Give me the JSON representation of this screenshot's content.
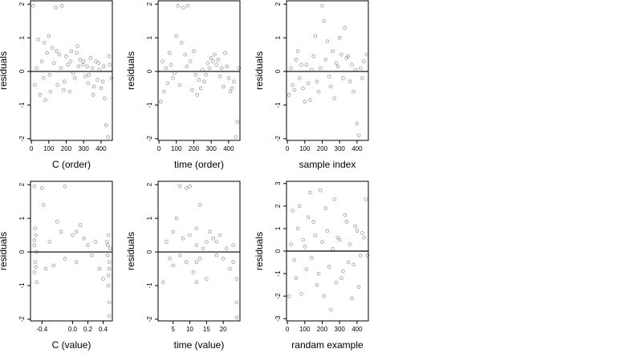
{
  "chart_data": [
    {
      "type": "scatter",
      "xlabel": "C (order)",
      "ylabel": "residuals",
      "xlim": [
        -5,
        465
      ],
      "ylim": [
        -2.05,
        2.1
      ],
      "xticks": [
        0,
        100,
        200,
        300,
        400
      ],
      "yticks": [
        -2,
        -1,
        0,
        1,
        2
      ],
      "hline": 0,
      "points": [
        [
          10,
          1.95
        ],
        [
          40,
          0.95
        ],
        [
          75,
          0.85
        ],
        [
          100,
          1.05
        ],
        [
          120,
          0.7
        ],
        [
          140,
          1.9
        ],
        [
          160,
          0.5
        ],
        [
          175,
          1.95
        ],
        [
          200,
          0.45
        ],
        [
          230,
          0.6
        ],
        [
          260,
          0.55
        ],
        [
          280,
          0.35
        ],
        [
          300,
          0.3
        ],
        [
          320,
          0.15
        ],
        [
          350,
          0.1
        ],
        [
          380,
          -0.25
        ],
        [
          400,
          -0.5
        ],
        [
          420,
          -0.8
        ],
        [
          440,
          -1.95
        ],
        [
          460,
          -0.2
        ],
        [
          20,
          -0.4
        ],
        [
          50,
          -0.7
        ],
        [
          80,
          -0.85
        ],
        [
          110,
          -0.6
        ],
        [
          150,
          -0.4
        ],
        [
          190,
          -0.3
        ],
        [
          220,
          -0.6
        ],
        [
          250,
          -0.2
        ],
        [
          330,
          -0.1
        ],
        [
          360,
          -0.45
        ],
        [
          410,
          -0.3
        ],
        [
          430,
          -1.6
        ],
        [
          450,
          0.2
        ],
        [
          60,
          0.3
        ],
        [
          90,
          0.55
        ],
        [
          130,
          0.25
        ],
        [
          170,
          0.1
        ],
        [
          210,
          0.2
        ],
        [
          240,
          -0.05
        ],
        [
          270,
          0.15
        ],
        [
          310,
          -0.15
        ],
        [
          340,
          0.4
        ],
        [
          370,
          0.3
        ],
        [
          390,
          0.05
        ],
        [
          30,
          0.1
        ],
        [
          70,
          -0.2
        ],
        [
          105,
          -0.1
        ],
        [
          145,
          0.6
        ],
        [
          185,
          -0.55
        ],
        [
          225,
          0.3
        ],
        [
          265,
          0.75
        ],
        [
          295,
          0.2
        ],
        [
          325,
          -0.35
        ],
        [
          355,
          -0.7
        ],
        [
          385,
          0.25
        ],
        [
          415,
          0.15
        ],
        [
          445,
          0.45
        ]
      ]
    },
    {
      "type": "scatter",
      "xlabel": "time (order)",
      "ylabel": "residuals",
      "xlim": [
        -5,
        465
      ],
      "ylim": [
        -2.05,
        2.1
      ],
      "xticks": [
        0,
        100,
        200,
        300,
        400
      ],
      "yticks": [
        -2,
        -1,
        0,
        1,
        2
      ],
      "hline": 0,
      "points": [
        [
          110,
          1.95
        ],
        [
          140,
          1.9
        ],
        [
          165,
          1.95
        ],
        [
          100,
          1.05
        ],
        [
          130,
          0.85
        ],
        [
          60,
          0.55
        ],
        [
          20,
          0.3
        ],
        [
          40,
          0.1
        ],
        [
          80,
          -0.2
        ],
        [
          150,
          0.5
        ],
        [
          180,
          0.3
        ],
        [
          210,
          -0.1
        ],
        [
          240,
          -0.5
        ],
        [
          260,
          -0.3
        ],
        [
          300,
          0.4
        ],
        [
          320,
          0.5
        ],
        [
          340,
          0.35
        ],
        [
          360,
          0.1
        ],
        [
          380,
          0.55
        ],
        [
          400,
          -0.2
        ],
        [
          420,
          -0.5
        ],
        [
          440,
          -1.95
        ],
        [
          450,
          -1.5
        ],
        [
          10,
          -0.9
        ],
        [
          30,
          -0.6
        ],
        [
          50,
          -0.35
        ],
        [
          70,
          0.2
        ],
        [
          90,
          -0.05
        ],
        [
          120,
          -0.4
        ],
        [
          160,
          0.15
        ],
        [
          190,
          -0.55
        ],
        [
          220,
          -0.7
        ],
        [
          250,
          0.05
        ],
        [
          280,
          0.25
        ],
        [
          310,
          0.3
        ],
        [
          330,
          0.2
        ],
        [
          350,
          -0.15
        ],
        [
          370,
          -0.45
        ],
        [
          390,
          0.15
        ],
        [
          410,
          -0.6
        ],
        [
          430,
          -0.3
        ],
        [
          460,
          0.1
        ],
        [
          200,
          0.6
        ],
        [
          230,
          -0.25
        ],
        [
          270,
          -0.1
        ],
        [
          290,
          0.1
        ]
      ]
    },
    {
      "type": "scatter",
      "xlabel": "sample index",
      "ylabel": "residuals",
      "xlim": [
        -5,
        465
      ],
      "ylim": [
        -2.05,
        2.1
      ],
      "xticks": [
        0,
        100,
        200,
        300,
        400
      ],
      "yticks": [
        -2,
        -1,
        0,
        1,
        2
      ],
      "hline": 0,
      "points": [
        [
          200,
          1.95
        ],
        [
          210,
          1.5
        ],
        [
          160,
          1.05
        ],
        [
          230,
          0.9
        ],
        [
          300,
          1.0
        ],
        [
          330,
          1.3
        ],
        [
          400,
          -1.55
        ],
        [
          410,
          -1.9
        ],
        [
          10,
          -0.7
        ],
        [
          30,
          -0.4
        ],
        [
          50,
          0.35
        ],
        [
          70,
          -0.2
        ],
        [
          90,
          -0.5
        ],
        [
          110,
          0.2
        ],
        [
          130,
          -0.85
        ],
        [
          150,
          0.45
        ],
        [
          170,
          -0.3
        ],
        [
          190,
          0.1
        ],
        [
          220,
          0.35
        ],
        [
          240,
          -0.15
        ],
        [
          260,
          0.6
        ],
        [
          280,
          0.25
        ],
        [
          310,
          0.5
        ],
        [
          340,
          0.4
        ],
        [
          360,
          -0.3
        ],
        [
          380,
          -0.6
        ],
        [
          420,
          0.1
        ],
        [
          440,
          0.3
        ],
        [
          455,
          0.5
        ],
        [
          20,
          0.1
        ],
        [
          40,
          -0.55
        ],
        [
          60,
          0.6
        ],
        [
          80,
          0.2
        ],
        [
          100,
          -0.9
        ],
        [
          120,
          -0.35
        ],
        [
          140,
          0.05
        ],
        [
          180,
          -0.6
        ],
        [
          250,
          -0.45
        ],
        [
          270,
          -0.8
        ],
        [
          290,
          0.15
        ],
        [
          320,
          -0.2
        ],
        [
          350,
          0.45
        ],
        [
          370,
          0.2
        ],
        [
          390,
          0.05
        ],
        [
          430,
          -0.2
        ]
      ]
    },
    {
      "type": "scatter",
      "xlabel": "C (value)",
      "ylabel": "residuals",
      "xlim": [
        -0.55,
        0.52
      ],
      "ylim": [
        -2.05,
        2.1
      ],
      "xticks": [
        -0.4,
        0.0,
        0.2,
        0.4
      ],
      "xtick_labels": [
        "-0.4",
        "0.0",
        "0.2",
        "0.4"
      ],
      "yticks": [
        -2,
        -1,
        0,
        1,
        2
      ],
      "hline": 0,
      "points": [
        [
          -0.5,
          1.95
        ],
        [
          -0.47,
          -0.9
        ],
        [
          -0.48,
          0.5
        ],
        [
          -0.5,
          0.2
        ],
        [
          -0.49,
          -0.3
        ],
        [
          -0.5,
          -0.6
        ],
        [
          -0.47,
          0.0
        ],
        [
          -0.48,
          -0.45
        ],
        [
          -0.5,
          0.35
        ],
        [
          -0.49,
          0.7
        ],
        [
          -0.4,
          1.9
        ],
        [
          -0.38,
          1.4
        ],
        [
          -0.35,
          -0.5
        ],
        [
          -0.3,
          0.3
        ],
        [
          -0.25,
          -0.4
        ],
        [
          -0.2,
          0.9
        ],
        [
          -0.15,
          0.6
        ],
        [
          -0.1,
          1.95
        ],
        [
          -0.1,
          -0.2
        ],
        [
          0.0,
          0.5
        ],
        [
          0.05,
          0.6
        ],
        [
          0.05,
          -0.3
        ],
        [
          0.1,
          0.8
        ],
        [
          0.15,
          0.4
        ],
        [
          0.2,
          0.2
        ],
        [
          0.25,
          -0.1
        ],
        [
          0.3,
          0.3
        ],
        [
          0.35,
          -0.5
        ],
        [
          0.4,
          -0.8
        ],
        [
          0.48,
          -1.9
        ],
        [
          0.48,
          -1.5
        ],
        [
          0.47,
          -0.7
        ],
        [
          0.46,
          0.2
        ],
        [
          0.48,
          -0.3
        ],
        [
          0.47,
          0.5
        ],
        [
          0.46,
          -0.1
        ],
        [
          0.49,
          0.1
        ],
        [
          0.48,
          -0.5
        ],
        [
          0.45,
          0.3
        ],
        [
          0.47,
          -1.0
        ]
      ]
    },
    {
      "type": "scatter",
      "xlabel": "time (value)",
      "ylabel": "residuals",
      "xlim": [
        0.5,
        25
      ],
      "ylim": [
        -2.05,
        2.1
      ],
      "xticks": [
        5,
        10,
        15,
        20
      ],
      "yticks": [
        -2,
        -1,
        0,
        1,
        2
      ],
      "hline": 0,
      "points": [
        [
          2,
          -0.9
        ],
        [
          3,
          0.3
        ],
        [
          4,
          -0.2
        ],
        [
          5,
          0.6
        ],
        [
          5,
          -0.4
        ],
        [
          6,
          1.0
        ],
        [
          7,
          1.95
        ],
        [
          7,
          -0.1
        ],
        [
          8,
          0.4
        ],
        [
          9,
          1.9
        ],
        [
          9,
          -0.3
        ],
        [
          10,
          0.5
        ],
        [
          10,
          1.95
        ],
        [
          11,
          -0.6
        ],
        [
          12,
          0.2
        ],
        [
          12,
          -0.9
        ],
        [
          12,
          0.7
        ],
        [
          12,
          -0.3
        ],
        [
          13,
          1.4
        ],
        [
          13,
          -0.2
        ],
        [
          14,
          0.1
        ],
        [
          15,
          -0.8
        ],
        [
          15,
          0.3
        ],
        [
          16,
          0.6
        ],
        [
          17,
          0.4
        ],
        [
          18,
          0.3
        ],
        [
          18,
          -0.1
        ],
        [
          19,
          0.5
        ],
        [
          20,
          -0.2
        ],
        [
          21,
          0.1
        ],
        [
          22,
          -0.5
        ],
        [
          23,
          -0.3
        ],
        [
          24,
          -1.5
        ],
        [
          24,
          -1.95
        ],
        [
          24,
          -0.8
        ],
        [
          23,
          0.2
        ]
      ]
    },
    {
      "type": "scatter",
      "xlabel": "randam example",
      "ylabel": "residuals",
      "xlim": [
        -5,
        465
      ],
      "ylim": [
        -3.1,
        3.1
      ],
      "xticks": [
        0,
        100,
        200,
        300,
        400
      ],
      "yticks": [
        -3,
        -2,
        -1,
        0,
        1,
        2,
        3
      ],
      "hline": 0,
      "points": [
        [
          10,
          -2.0
        ],
        [
          30,
          1.8
        ],
        [
          50,
          -1.2
        ],
        [
          70,
          2.0
        ],
        [
          90,
          0.5
        ],
        [
          110,
          -0.8
        ],
        [
          130,
          2.6
        ],
        [
          150,
          1.3
        ],
        [
          170,
          -1.5
        ],
        [
          190,
          2.7
        ],
        [
          210,
          -2.0
        ],
        [
          230,
          0.9
        ],
        [
          250,
          -2.6
        ],
        [
          270,
          2.3
        ],
        [
          290,
          0.6
        ],
        [
          310,
          -1.2
        ],
        [
          330,
          1.6
        ],
        [
          350,
          -0.5
        ],
        [
          370,
          -2.1
        ],
        [
          390,
          1.1
        ],
        [
          410,
          -1.6
        ],
        [
          430,
          0.8
        ],
        [
          450,
          2.3
        ],
        [
          460,
          -0.2
        ],
        [
          20,
          0.3
        ],
        [
          40,
          -0.4
        ],
        [
          60,
          1.0
        ],
        [
          80,
          -1.9
        ],
        [
          100,
          0.2
        ],
        [
          120,
          1.5
        ],
        [
          140,
          -0.3
        ],
        [
          160,
          0.7
        ],
        [
          180,
          -1.0
        ],
        [
          200,
          0.4
        ],
        [
          220,
          1.9
        ],
        [
          240,
          -0.7
        ],
        [
          260,
          0.1
        ],
        [
          280,
          -1.4
        ],
        [
          300,
          0.5
        ],
        [
          320,
          -0.9
        ],
        [
          340,
          1.3
        ],
        [
          360,
          0.3
        ],
        [
          380,
          -0.6
        ],
        [
          400,
          0.9
        ],
        [
          420,
          -0.2
        ],
        [
          440,
          0.6
        ]
      ]
    }
  ]
}
